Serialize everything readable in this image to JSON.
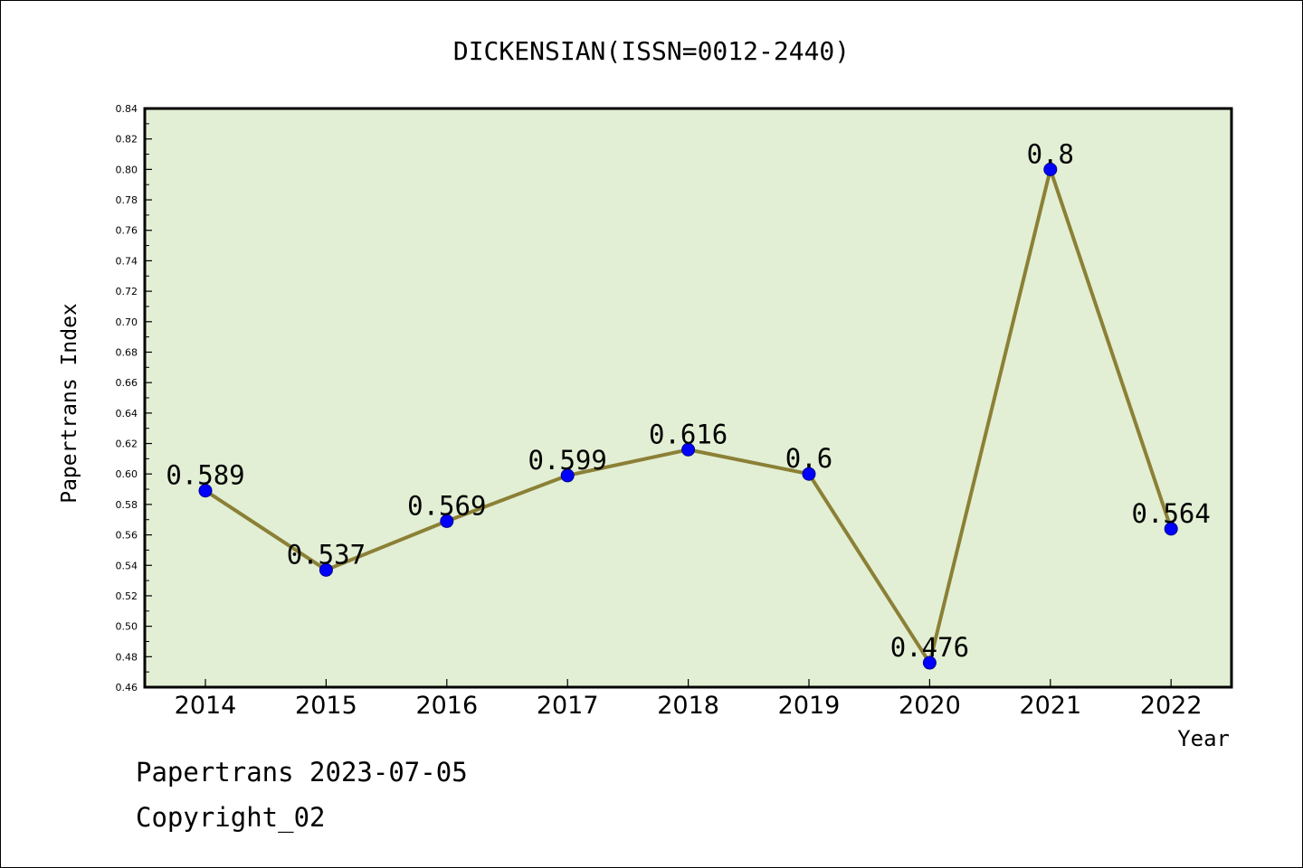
{
  "chart_data": {
    "type": "line",
    "title": "DICKENSIAN(ISSN=0012-2440)",
    "xlabel": "Year",
    "ylabel": "Papertrans Index",
    "categories": [
      "2014",
      "2015",
      "2016",
      "2017",
      "2018",
      "2019",
      "2020",
      "2021",
      "2022"
    ],
    "values": [
      0.589,
      0.537,
      0.569,
      0.599,
      0.616,
      0.6,
      0.476,
      0.8,
      0.564
    ],
    "value_labels": [
      "0.589",
      "0.537",
      "0.569",
      "0.599",
      "0.616",
      "0.6",
      "0.476",
      "0.8",
      "0.564"
    ],
    "ylim": [
      0.46,
      0.84
    ],
    "yticks": [
      "0.46",
      "0.48",
      "0.50",
      "0.52",
      "0.54",
      "0.56",
      "0.58",
      "0.60",
      "0.62",
      "0.64",
      "0.66",
      "0.68",
      "0.70",
      "0.72",
      "0.74",
      "0.76",
      "0.78",
      "0.80",
      "0.82",
      "0.84"
    ],
    "grid": false,
    "colors": {
      "plot_background": "#e2efd4",
      "line": "#8b8036",
      "marker": "#0000ff"
    }
  },
  "footer": {
    "line1": "Papertrans 2023-07-05",
    "line2": "Copyright_02"
  }
}
